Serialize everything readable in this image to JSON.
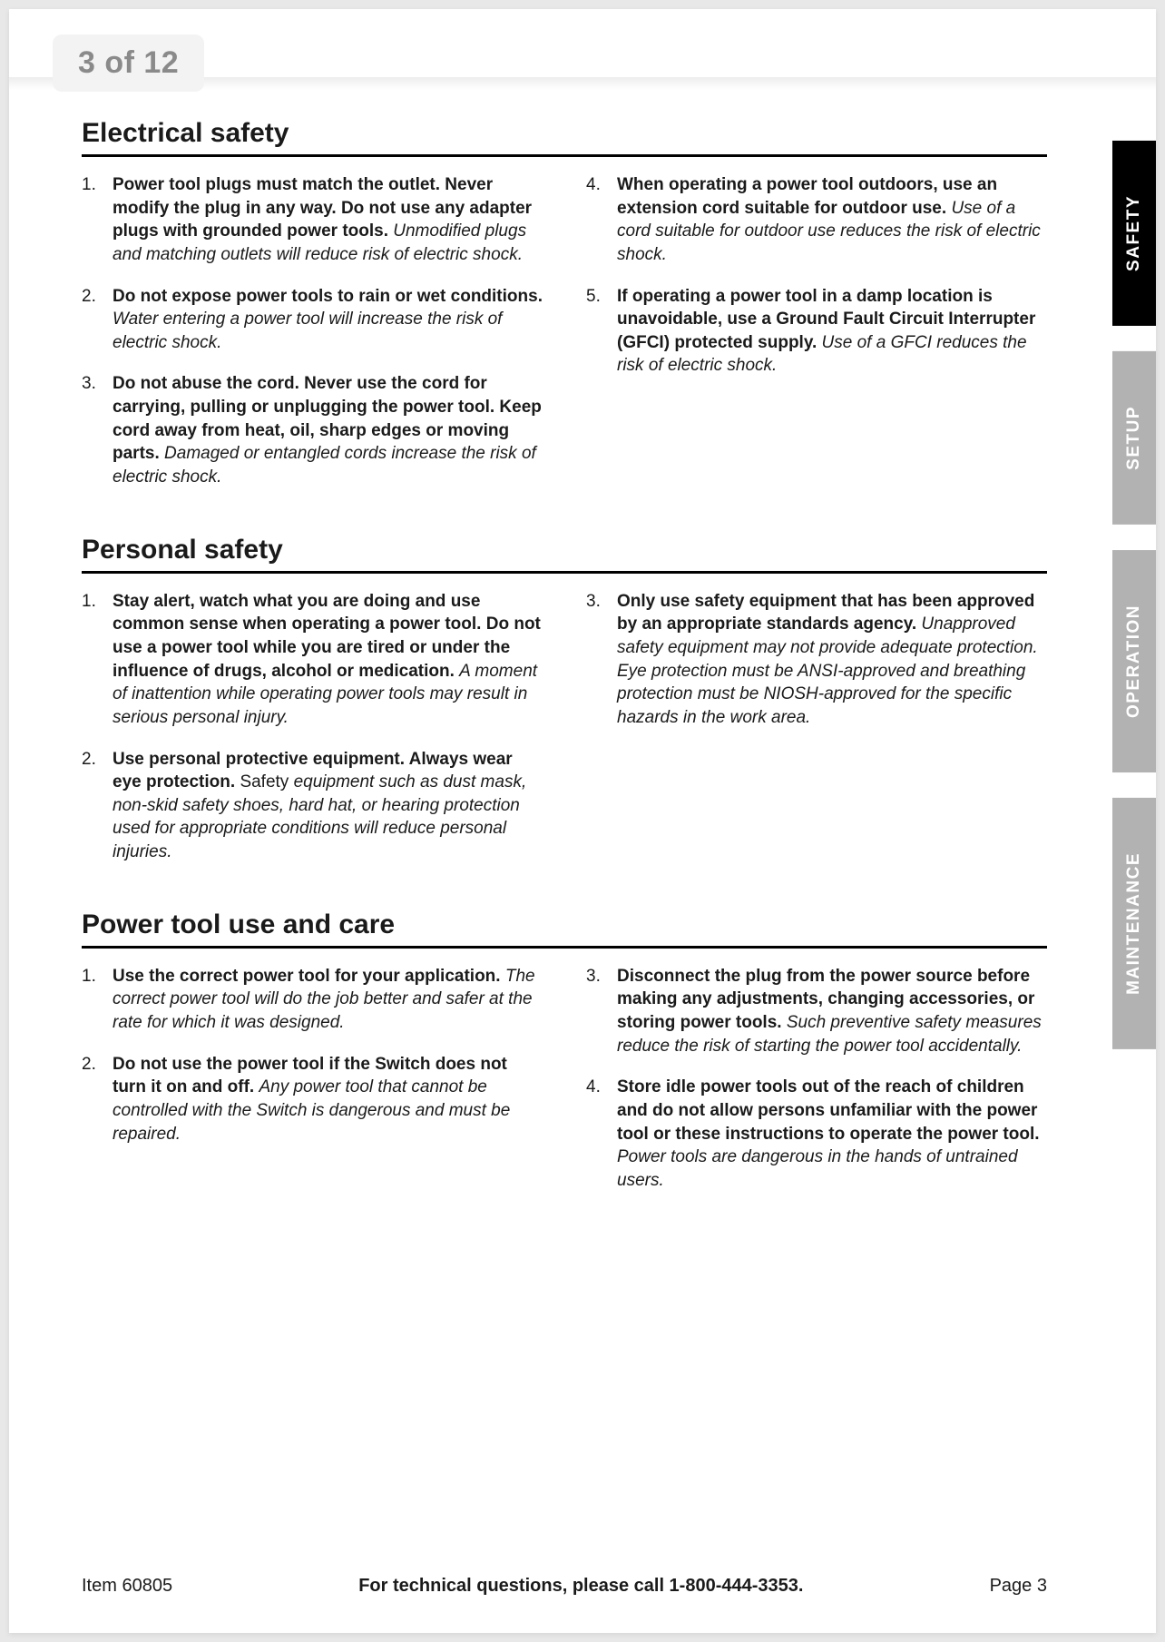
{
  "pageBadge": "3 of 12",
  "tabs": [
    {
      "label": "SAFETY",
      "active": true
    },
    {
      "label": "SETUP",
      "active": false
    },
    {
      "label": "OPERATION",
      "active": false
    },
    {
      "label": "MAINTENANCE",
      "active": false
    }
  ],
  "sections": [
    {
      "title": "Electrical safety",
      "left": [
        {
          "bold": "Power tool plugs must match the outlet. Never modify the plug in any way. Do not use any adapter plugs with grounded power tools.",
          "italic": "Unmodified plugs and matching outlets will reduce risk of electric shock."
        },
        {
          "bold": "Do not expose power tools to rain or wet conditions.",
          "italic": "Water entering a power tool will increase the risk of electric shock."
        },
        {
          "bold": "Do not abuse the cord.  Never use the cord for carrying, pulling or unplugging the power tool.  Keep cord away from heat, oil, sharp edges or moving parts.",
          "italic": "Damaged or entangled cords increase the risk of electric shock."
        }
      ],
      "rightStart": 3,
      "right": [
        {
          "bold": "When operating a power tool outdoors, use an extension cord suitable for outdoor use.",
          "italic": "Use of a cord suitable for outdoor use reduces the risk of electric shock."
        },
        {
          "bold": "If operating a power tool in a damp location is unavoidable, use a Ground Fault Circuit Interrupter (GFCI) protected supply.",
          "italic": "Use of a GFCI reduces the risk of electric shock."
        }
      ]
    },
    {
      "title": "Personal safety",
      "left": [
        {
          "bold": "Stay alert, watch what you are doing and use common sense when operating a power tool.  Do not use a power tool while you are tired or under the influence of drugs, alcohol or medication.",
          "italic": "A moment of inattention while operating power tools may result in serious personal injury."
        },
        {
          "bold": "Use personal protective equipment.  Always wear eye protection.",
          "plain": "Safety ",
          "italic": "equipment such as dust mask, non-skid safety shoes, hard hat, or hearing protection used for appropriate conditions will reduce personal injuries."
        }
      ],
      "rightStart": 2,
      "right": [
        {
          "bold": "Only use safety equipment that has been approved by an appropriate standards agency.",
          "italic": "Unapproved safety equipment may not provide adequate protection. Eye protection must be ANSI-approved and breathing protection must be NIOSH-approved for the specific hazards in the work area."
        }
      ]
    },
    {
      "title": "Power tool use and care",
      "left": [
        {
          "bold": "Use the correct power tool for your application.",
          "italic": "The correct power tool will do the job better and safer at the rate for which it was designed."
        },
        {
          "bold": "Do not use the power tool if the Switch does not turn it on and off.",
          "italic": "Any power tool that cannot be controlled with the Switch is dangerous and must be repaired."
        }
      ],
      "rightStart": 2,
      "right": [
        {
          "bold": "Disconnect the plug from the power source before making any adjustments, changing accessories, or storing power tools.",
          "italic": "Such preventive safety measures reduce the risk of starting the power tool accidentally."
        },
        {
          "bold": "Store idle power tools out of the reach of children and do not allow persons unfamiliar with the power tool or these instructions to operate the power tool.",
          "italic": "Power tools are dangerous in the hands of untrained users."
        }
      ]
    }
  ],
  "footer": {
    "left": "Item 60805",
    "center": "For technical questions, please call 1-800-444-3353.",
    "right": "Page 3"
  }
}
